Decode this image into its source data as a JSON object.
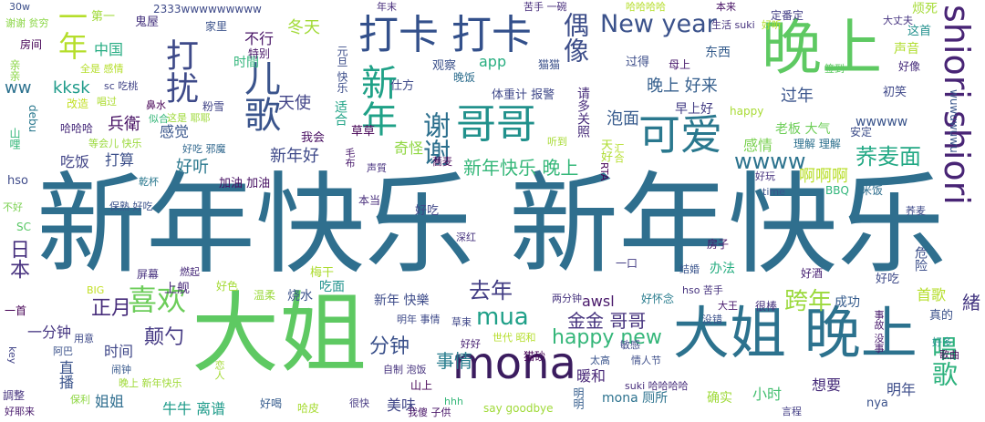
{
  "words": [
    {
      "text": "新年快乐 新年快乐",
      "color": "#2f6f8e"
    },
    {
      "text": "大姐",
      "color": "#5ec962"
    },
    {
      "text": "大姐 晚上",
      "color": "#2c728e"
    },
    {
      "text": "晚上",
      "color": "#5ec962"
    },
    {
      "text": "mona",
      "color": "#3b1c5f"
    },
    {
      "text": "打卡 打卡",
      "color": "#33508b"
    },
    {
      "text": "可爱",
      "color": "#2a788e"
    },
    {
      "text": "哥哥",
      "color": "#21918c"
    },
    {
      "text": "新年",
      "color": "#1fa187"
    },
    {
      "text": "shiori shiori",
      "color": "#482475"
    },
    {
      "text": "儿歌",
      "color": "#3a548c"
    },
    {
      "text": "打扰",
      "color": "#3e4a89"
    },
    {
      "text": "一年",
      "color": "#b5de2b"
    },
    {
      "text": "New year",
      "color": "#3b528b"
    },
    {
      "text": "谢谢",
      "color": "#2d708e"
    },
    {
      "text": "喜欢",
      "color": "#6ccd5a"
    },
    {
      "text": "偶像",
      "color": "#3d4e8a"
    },
    {
      "text": "mua",
      "color": "#1fa088"
    },
    {
      "text": "唱歌",
      "color": "#2db27d"
    },
    {
      "text": "新年快乐 晚上",
      "color": "#35b779"
    },
    {
      "text": "荞麦面",
      "color": "#22a884"
    },
    {
      "text": "wwww",
      "color": "#2c738e"
    },
    {
      "text": "happy new",
      "color": "#34b679"
    },
    {
      "text": "金金 哥哥",
      "color": "#46337e"
    },
    {
      "text": "跨年",
      "color": "#9bd93c"
    },
    {
      "text": "去年",
      "color": "#433e85"
    },
    {
      "text": "分钟",
      "color": "#3b518b"
    },
    {
      "text": "正月",
      "color": "#472d7b"
    },
    {
      "text": "颠勺",
      "color": "#443983"
    },
    {
      "text": "事情",
      "color": "#287d8e"
    },
    {
      "text": "晚上 好来",
      "color": "#355f8d"
    },
    {
      "text": "过年",
      "color": "#3a548c"
    },
    {
      "text": "泡面",
      "color": "#375b8d"
    },
    {
      "text": "感情",
      "color": "#7ad151"
    },
    {
      "text": "啊啊啊",
      "color": "#b8de29"
    },
    {
      "text": "新年好",
      "color": "#3e4989"
    },
    {
      "text": "好听",
      "color": "#2a788e"
    },
    {
      "text": "打算",
      "color": "#3c4f8a"
    },
    {
      "text": "吃饭",
      "color": "#414487"
    },
    {
      "text": "兵衛",
      "color": "#471164"
    },
    {
      "text": "感觉",
      "color": "#39568c"
    },
    {
      "text": "天使",
      "color": "#414387"
    },
    {
      "text": "kksk",
      "color": "#1e9b8a"
    },
    {
      "text": "ww",
      "color": "#2c718e"
    },
    {
      "text": "冬天",
      "color": "#a2da37"
    },
    {
      "text": "不行",
      "color": "#471365"
    },
    {
      "text": "中国",
      "color": "#25ac82"
    },
    {
      "text": "日本",
      "color": "#46307e"
    },
    {
      "text": "一分钟",
      "color": "#453581"
    },
    {
      "text": "时间",
      "color": "#3f4788"
    },
    {
      "text": "直播",
      "color": "#3a538b"
    },
    {
      "text": "姐姐",
      "color": "#2e6d8e"
    },
    {
      "text": "牛牛 离谱",
      "color": "#1e9b8a"
    },
    {
      "text": "美味",
      "color": "#404688"
    },
    {
      "text": "暖和",
      "color": "#482878"
    },
    {
      "text": "小时",
      "color": "#44bf70"
    },
    {
      "text": "想要",
      "color": "#472c7a"
    },
    {
      "text": "明年",
      "color": "#3d4d8a"
    },
    {
      "text": "首歌",
      "color": "#b5de2b"
    },
    {
      "text": "緒",
      "color": "#453882"
    },
    {
      "text": "成功",
      "color": "#365c8d"
    },
    {
      "text": "wwwww",
      "color": "#3a548c"
    },
    {
      "text": "老板 大气",
      "color": "#6ece58"
    },
    {
      "text": "新年 快樂",
      "color": "#3e4c8a"
    },
    {
      "text": "awsl",
      "color": "#48186a"
    },
    {
      "text": "mona 厕所",
      "color": "#2c728e"
    },
    {
      "text": "确实",
      "color": "#9fda3a"
    },
    {
      "text": "声音",
      "color": "#b0dd2f"
    },
    {
      "text": "早上好",
      "color": "#433d84"
    },
    {
      "text": "吃面",
      "color": "#20928c"
    },
    {
      "text": "上舰",
      "color": "#482979"
    },
    {
      "text": "屏幕",
      "color": "#46307e"
    },
    {
      "text": "烧水",
      "color": "#3b528b"
    },
    {
      "text": "梅干",
      "color": "#addc30"
    },
    {
      "text": "适合",
      "color": "#20a386"
    },
    {
      "text": "奇怪",
      "color": "#90d743"
    },
    {
      "text": "草草",
      "color": "#440154"
    },
    {
      "text": "我会",
      "color": "#470e61"
    },
    {
      "text": "请多关照",
      "color": "#472c7a"
    },
    {
      "text": "观察",
      "color": "#3b518b"
    },
    {
      "text": "晚饭",
      "color": "#2e6e8e"
    },
    {
      "text": "app",
      "color": "#28ae80"
    },
    {
      "text": "仕方",
      "color": "#3e4a89"
    },
    {
      "text": "体重计 报警",
      "color": "#3f4889"
    },
    {
      "text": "过得",
      "color": "#3d4e8a"
    },
    {
      "text": "母上",
      "color": "#481a6c"
    },
    {
      "text": "东西",
      "color": "#365d8d"
    },
    {
      "text": "猫猫",
      "color": "#3b518b"
    },
    {
      "text": "happy",
      "color": "#a8db34"
    },
    {
      "text": "初笑",
      "color": "#3f4889"
    },
    {
      "text": "安定",
      "color": "#3d4d8a"
    },
    {
      "text": "好像",
      "color": "#472d7b"
    },
    {
      "text": "理解 理解",
      "color": "#2d708e"
    },
    {
      "text": "这首",
      "color": "#21908d"
    },
    {
      "text": "时間",
      "color": "#31b57b"
    },
    {
      "text": "特别",
      "color": "#481668"
    },
    {
      "text": "元旦 快乐",
      "color": "#3d4e8a"
    },
    {
      "text": "鬼屋",
      "color": "#46337e"
    },
    {
      "text": "第一",
      "color": "#a0da39"
    },
    {
      "text": "2333wwwwwwwww",
      "color": "#3e4a89"
    },
    {
      "text": "30w",
      "color": "#3c4f8a"
    },
    {
      "text": "谢谢 贫穷",
      "color": "#8bd646"
    },
    {
      "text": "房间",
      "color": "#440154"
    },
    {
      "text": "亲亲",
      "color": "#8bd646"
    },
    {
      "text": "全是 感情",
      "color": "#b5de2b"
    },
    {
      "text": "sc 吃桃",
      "color": "#414487"
    },
    {
      "text": "哈哈哈",
      "color": "#472a7a"
    },
    {
      "text": "改造",
      "color": "#c2df23"
    },
    {
      "text": "唱过",
      "color": "#addc30"
    },
    {
      "text": "debu",
      "color": "#2a788e"
    },
    {
      "text": "等会儿 快乐",
      "color": "#9bd93c"
    },
    {
      "text": "似合",
      "color": "#35b779"
    },
    {
      "text": "鼻水",
      "color": "#440154"
    },
    {
      "text": "这是 耶耶",
      "color": "#9fda3a"
    },
    {
      "text": "粉雪",
      "color": "#414487"
    },
    {
      "text": "家里",
      "color": "#3b528b"
    },
    {
      "text": "年末",
      "color": "#472d7b"
    },
    {
      "text": "苦手 一碗",
      "color": "#472d7b"
    },
    {
      "text": "哈哈哈哈",
      "color": "#b5de2b"
    },
    {
      "text": "本来",
      "color": "#471365"
    },
    {
      "text": "定番定",
      "color": "#433e85"
    },
    {
      "text": "生活 suki",
      "color": "#46337e"
    },
    {
      "text": "大丈夫",
      "color": "#463480"
    },
    {
      "text": "烦死",
      "color": "#a5db36"
    },
    {
      "text": "签到",
      "color": "#5ec962"
    },
    {
      "text": "好听",
      "color": "#b5de2b"
    },
    {
      "text": "wuwuwuwu",
      "color": "#39568c"
    },
    {
      "text": "好吃",
      "color": "#3e4a89"
    },
    {
      "text": "毛布",
      "color": "#481a6c"
    },
    {
      "text": "好吃",
      "color": "#3f4788"
    },
    {
      "text": "加油 加油",
      "color": "#471063"
    },
    {
      "text": "乾杯",
      "color": "#2a788e"
    },
    {
      "text": "好吃 邪魔",
      "color": "#31688e"
    },
    {
      "text": "声質",
      "color": "#46307e"
    },
    {
      "text": "蕎麦",
      "color": "#440154"
    },
    {
      "text": "天好",
      "color": "#addc30"
    },
    {
      "text": "汇合",
      "color": "#b5de2b"
    },
    {
      "text": "BBQ",
      "color": "#31b57b"
    },
    {
      "text": "米饭",
      "color": "#2e6e8e"
    },
    {
      "text": "time",
      "color": "#3a548c"
    },
    {
      "text": "好玩",
      "color": "#46327e"
    },
    {
      "text": "荞麦",
      "color": "#3e4a89"
    },
    {
      "text": "危险",
      "color": "#3c4f8a"
    },
    {
      "text": "本当",
      "color": "#472d7b"
    },
    {
      "text": "RTA",
      "color": "#440154"
    },
    {
      "text": "深红",
      "color": "#46337e"
    },
    {
      "text": "房子",
      "color": "#481769"
    },
    {
      "text": "一口",
      "color": "#433d84"
    },
    {
      "text": "结婚",
      "color": "#3a548c"
    },
    {
      "text": "办法",
      "color": "#27ad81"
    },
    {
      "text": "好酒",
      "color": "#482173"
    },
    {
      "text": "hso 苦手",
      "color": "#46337e"
    },
    {
      "text": "大王",
      "color": "#481a6c"
    },
    {
      "text": "很棒",
      "color": "#46327e"
    },
    {
      "text": "好怀念",
      "color": "#287c8e"
    },
    {
      "text": "两分钟",
      "color": "#46337e"
    },
    {
      "text": "事故 没事",
      "color": "#481a6c"
    },
    {
      "text": "真的",
      "color": "#3b528b"
    },
    {
      "text": "好多",
      "color": "#21908d"
    },
    {
      "text": "歌曲",
      "color": "#440154"
    },
    {
      "text": "没错",
      "color": "#3b518b"
    },
    {
      "text": "明年 事情",
      "color": "#3e4a89"
    },
    {
      "text": "草束",
      "color": "#3f4788"
    },
    {
      "text": "世代 昭和",
      "color": "#b5de2b"
    },
    {
      "text": "猫砂",
      "color": "#440154"
    },
    {
      "text": "敏感",
      "color": "#3e4989"
    },
    {
      "text": "太高",
      "color": "#3a548c"
    },
    {
      "text": "情人节",
      "color": "#3d4e8a"
    },
    {
      "text": "好好",
      "color": "#482173"
    },
    {
      "text": "自制 泡饭",
      "color": "#46337e"
    },
    {
      "text": "山上",
      "color": "#440154"
    },
    {
      "text": "hhh",
      "color": "#35b779"
    },
    {
      "text": "say goodbye",
      "color": "#a0da39"
    },
    {
      "text": "明明",
      "color": "#355e8d"
    },
    {
      "text": "suki 哈哈哈哈",
      "color": "#472d7b"
    },
    {
      "text": "nya",
      "color": "#3b528b"
    },
    {
      "text": "言程",
      "color": "#433e85"
    },
    {
      "text": "我傻 子供",
      "color": "#481467"
    },
    {
      "text": "很快",
      "color": "#453882"
    },
    {
      "text": "哈皮",
      "color": "#a8db34"
    },
    {
      "text": "好喝",
      "color": "#365c8d"
    },
    {
      "text": "好耶来",
      "color": "#481a6c"
    },
    {
      "text": "保利",
      "color": "#8fd744"
    },
    {
      "text": "闹钟",
      "color": "#38598c"
    },
    {
      "text": "晚上 新年快乐",
      "color": "#a0da39"
    },
    {
      "text": "阿巴",
      "color": "#3b528b"
    },
    {
      "text": "用意",
      "color": "#3e4a89"
    },
    {
      "text": "一首",
      "color": "#440154"
    },
    {
      "text": "調整",
      "color": "#46337e"
    },
    {
      "text": "key",
      "color": "#414487"
    },
    {
      "text": "BIG",
      "color": "#c2df23"
    },
    {
      "text": "恋人",
      "color": "#a5db36"
    },
    {
      "text": "温柔",
      "color": "#9bd93c"
    },
    {
      "text": "燃起",
      "color": "#472a7a"
    },
    {
      "text": "好色",
      "color": "#a5db36"
    },
    {
      "text": "保熟 好吃",
      "color": "#3b528b"
    },
    {
      "text": "不好",
      "color": "#7ad151"
    },
    {
      "text": "SC",
      "color": "#58c765"
    },
    {
      "text": "hso",
      "color": "#3e4a89"
    },
    {
      "text": "山哩",
      "color": "#35b779"
    },
    {
      "text": "听到",
      "color": "#a8db34"
    }
  ]
}
